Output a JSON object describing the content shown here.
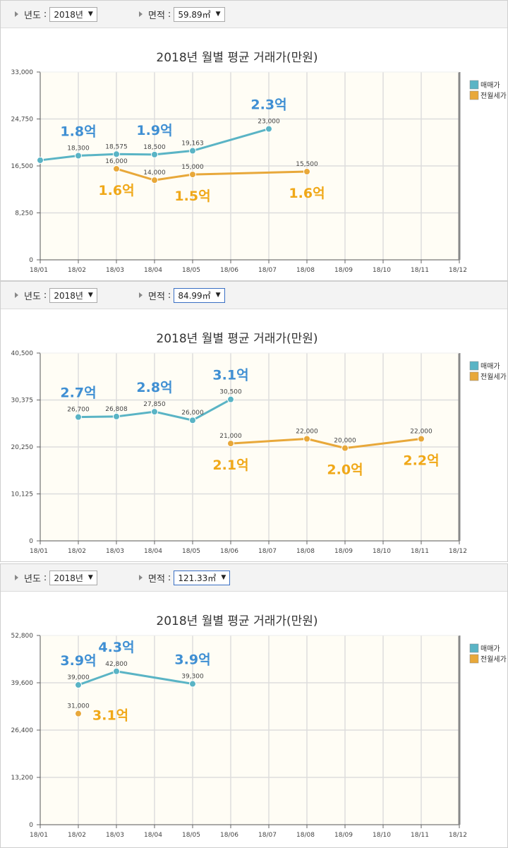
{
  "panels": [
    {
      "year_label": "년도",
      "year_value": "2018년",
      "area_label": "면적",
      "area_value": "59.89㎡",
      "area_focused": false
    },
    {
      "year_label": "년도",
      "year_value": "2018년",
      "area_label": "면적",
      "area_value": "84.99㎡",
      "area_focused": true
    },
    {
      "year_label": "년도",
      "year_value": "2018년",
      "area_label": "면적",
      "area_value": "121.33㎡",
      "area_focused": true
    }
  ],
  "colors": {
    "sale": "#5ab4c5",
    "lease": "#e8a83a",
    "sale_big_label": "#3f8fd3",
    "lease_big_label": "#f0a818",
    "plot_bg": "#fffdf5",
    "grid": "#dddddd"
  },
  "chart_data": [
    {
      "type": "line",
      "title": "2018년 월별 평균 거래가(만원)",
      "categories": [
        "18/01",
        "18/02",
        "18/03",
        "18/04",
        "18/05",
        "18/06",
        "18/07",
        "18/08",
        "18/09",
        "18/10",
        "18/11",
        "18/12"
      ],
      "ylim": [
        0,
        33000
      ],
      "yticks": [
        "0",
        "8,250",
        "16,500",
        "24,750",
        "33,000"
      ],
      "legend": [
        "매매가",
        "전월세가"
      ],
      "legend_position": "right",
      "series": [
        {
          "name": "매매가",
          "values": [
            17500,
            18300,
            18575,
            18500,
            19163,
            null,
            23000,
            null,
            null,
            null,
            null,
            null
          ],
          "point_labels": [
            null,
            "18,300",
            "18,575",
            "18,500",
            "19,163",
            null,
            "23,000",
            null,
            null,
            null,
            null,
            null
          ]
        },
        {
          "name": "전월세가",
          "values": [
            null,
            null,
            16000,
            14000,
            15000,
            null,
            null,
            15500,
            null,
            null,
            null,
            null
          ],
          "point_labels": [
            null,
            null,
            "16,000",
            "14,000",
            "15,000",
            null,
            null,
            "15,500",
            null,
            null,
            null,
            null
          ]
        }
      ],
      "annotations": [
        {
          "text": "1.8억",
          "series": 0,
          "month": 1,
          "pos": "above"
        },
        {
          "text": "1.9억",
          "series": 0,
          "month": 3,
          "pos": "above"
        },
        {
          "text": "2.3억",
          "series": 0,
          "month": 6,
          "pos": "above"
        },
        {
          "text": "1.6억",
          "series": 1,
          "month": 2,
          "pos": "below"
        },
        {
          "text": "1.5억",
          "series": 1,
          "month": 4,
          "pos": "below"
        },
        {
          "text": "1.6억",
          "series": 1,
          "month": 7,
          "pos": "below"
        }
      ]
    },
    {
      "type": "line",
      "title": "2018년 월별 평균 거래가(만원)",
      "categories": [
        "18/01",
        "18/02",
        "18/03",
        "18/04",
        "18/05",
        "18/06",
        "18/07",
        "18/08",
        "18/09",
        "18/10",
        "18/11",
        "18/12"
      ],
      "ylim": [
        0,
        40500
      ],
      "yticks": [
        "0",
        "10,125",
        "20,250",
        "30,375",
        "40,500"
      ],
      "legend": [
        "매매가",
        "전월세가"
      ],
      "legend_position": "right",
      "series": [
        {
          "name": "매매가",
          "values": [
            null,
            26700,
            26808,
            27850,
            26000,
            30500,
            null,
            null,
            null,
            null,
            null,
            null
          ],
          "point_labels": [
            null,
            "26,700",
            "26,808",
            "27,850",
            "26,000",
            "30,500",
            null,
            null,
            null,
            null,
            null,
            null
          ]
        },
        {
          "name": "전월세가",
          "values": [
            null,
            null,
            null,
            null,
            null,
            21000,
            null,
            22000,
            20000,
            null,
            22000,
            null
          ],
          "point_labels": [
            null,
            null,
            null,
            null,
            null,
            "21,000",
            null,
            "22,000",
            "20,000",
            null,
            "22,000",
            null
          ]
        }
      ],
      "annotations": [
        {
          "text": "2.7억",
          "series": 0,
          "month": 1,
          "pos": "above"
        },
        {
          "text": "2.8억",
          "series": 0,
          "month": 3,
          "pos": "above"
        },
        {
          "text": "3.1억",
          "series": 0,
          "month": 5,
          "pos": "above"
        },
        {
          "text": "2.1억",
          "series": 1,
          "month": 5,
          "pos": "below"
        },
        {
          "text": "2.0억",
          "series": 1,
          "month": 8,
          "pos": "below"
        },
        {
          "text": "2.2억",
          "series": 1,
          "month": 10,
          "pos": "below"
        }
      ]
    },
    {
      "type": "line",
      "title": "2018년 월별 평균 거래가(만원)",
      "categories": [
        "18/01",
        "18/02",
        "18/03",
        "18/04",
        "18/05",
        "18/06",
        "18/07",
        "18/08",
        "18/09",
        "18/10",
        "18/11",
        "18/12"
      ],
      "ylim": [
        0,
        52800
      ],
      "yticks": [
        "0",
        "13,200",
        "26,400",
        "39,600",
        "52,800"
      ],
      "legend": [
        "매매가",
        "전월세가"
      ],
      "legend_position": "right",
      "series": [
        {
          "name": "매매가",
          "values": [
            null,
            39000,
            42800,
            null,
            39300,
            null,
            null,
            null,
            null,
            null,
            null,
            null
          ],
          "point_labels": [
            null,
            "39,000",
            "42,800",
            null,
            "39,300",
            null,
            null,
            null,
            null,
            null,
            null,
            null
          ]
        },
        {
          "name": "전월세가",
          "values": [
            null,
            31000,
            null,
            null,
            null,
            null,
            null,
            null,
            null,
            null,
            null,
            null
          ],
          "point_labels": [
            null,
            "31,000",
            null,
            null,
            null,
            null,
            null,
            null,
            null,
            null,
            null,
            null
          ]
        }
      ],
      "annotations": [
        {
          "text": "3.9억",
          "series": 0,
          "month": 1,
          "pos": "above"
        },
        {
          "text": "4.3억",
          "series": 0,
          "month": 2,
          "pos": "above"
        },
        {
          "text": "3.9억",
          "series": 0,
          "month": 4,
          "pos": "above"
        },
        {
          "text": "3.1억",
          "series": 1,
          "month": 1,
          "pos": "right"
        }
      ]
    }
  ]
}
